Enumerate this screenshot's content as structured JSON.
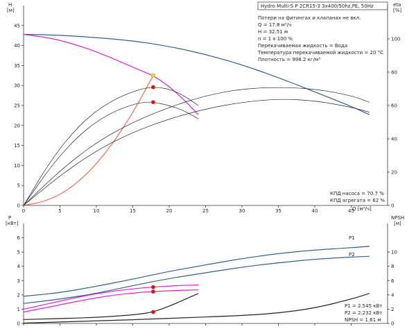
{
  "info": {
    "title": "Hydro Multi-S P 2CR15-3 3x400/50hz,PE, 50Hz",
    "lines": [
      "Потери на фитингах и клапанах не вкл.",
      "Q = 17.8 м³/ч",
      "H = 32.51 м",
      "n = 1 x 100 %",
      "Перекачиваемая жидкость = Вода",
      "Температура перекачиваемой жидкости = 20 °C",
      "Плотность = 998.2 кг/м³"
    ]
  },
  "bottom_notes": {
    "eff_lines": [
      "КПД насоса = 70.7 %",
      "КПД агрегата = 62 %"
    ],
    "power_lines": [
      "P1 = 2.545 кВт",
      "P2 = 2.232 кВт",
      "NPSH = 1.61 м"
    ]
  },
  "labels": {
    "h_axis": "H",
    "h_unit": "[м]",
    "eta_axis": "eta",
    "eta_unit": "[%]",
    "p_axis": "P",
    "p_unit": "[кВт]",
    "npsh_axis": "NPSH",
    "npsh_unit": "[м]",
    "q_axis": "Q [м³/ч]",
    "p1": "P1",
    "p2": "P2"
  },
  "colors": {
    "system_blue": "#2f5f8f",
    "pump_magenta": "#e020d0",
    "system_curve_red": "#f06a50",
    "efficiency_black": "#222222",
    "duty_point_red": "#e01010",
    "duty_point_yellow": "#f7d12e"
  },
  "chart_data": [
    {
      "type": "line",
      "name": "head-and-efficiency",
      "xlim": [
        0,
        50
      ],
      "x_ticks": [
        0,
        5,
        10,
        15,
        20,
        25,
        30,
        35,
        40,
        45
      ],
      "ylim_left": [
        0,
        50
      ],
      "y_ticks_left": [
        0,
        5,
        10,
        15,
        20,
        25,
        30,
        35,
        40,
        45
      ],
      "ylim_right": [
        0,
        120
      ],
      "y_ticks_right": [
        0,
        20,
        40,
        60,
        80,
        100
      ],
      "series": [
        {
          "role": "system-head",
          "axis": "left",
          "color": "blue",
          "x": [
            0,
            5,
            10,
            15,
            20,
            25,
            30,
            35,
            40,
            45,
            47.5
          ],
          "y": [
            42.8,
            42.6,
            42.0,
            41.2,
            39.8,
            37.8,
            35.2,
            32.0,
            28.4,
            24.8,
            22.7
          ]
        },
        {
          "role": "pump-head",
          "axis": "left",
          "color": "magenta",
          "x": [
            0,
            4,
            8,
            12,
            16,
            17.8,
            20,
            22,
            24
          ],
          "y": [
            42.8,
            41.8,
            39.8,
            37.0,
            33.8,
            32.5,
            29.8,
            26.5,
            22.7
          ]
        },
        {
          "role": "system-curve",
          "axis": "left",
          "color": "red",
          "x": [
            0,
            3,
            6,
            9,
            12,
            15,
            17.8
          ],
          "y": [
            0,
            1.0,
            3.7,
            8.3,
            14.8,
            23.1,
            32.5
          ]
        },
        {
          "role": "efficiency-1",
          "axis": "right",
          "x": [
            0,
            4,
            8,
            12,
            16,
            18,
            20,
            22,
            24
          ],
          "y": [
            0,
            25,
            44,
            56,
            62,
            62,
            60,
            57,
            52
          ]
        },
        {
          "role": "efficiency-2",
          "axis": "right",
          "x": [
            0,
            4,
            8,
            12,
            16,
            18,
            20,
            22,
            24
          ],
          "y": [
            0,
            29,
            50,
            63,
            70,
            71,
            70,
            66,
            60
          ]
        },
        {
          "role": "efficiency-3",
          "axis": "right",
          "x": [
            0,
            5,
            10,
            15,
            20,
            25,
            30,
            35,
            40,
            45,
            47.5
          ],
          "y": [
            0,
            18,
            33,
            44,
            52,
            58,
            62,
            64,
            63,
            59,
            56
          ]
        },
        {
          "role": "efficiency-4",
          "axis": "right",
          "x": [
            0,
            5,
            10,
            15,
            20,
            25,
            30,
            35,
            40,
            45,
            47.5
          ],
          "y": [
            0,
            21,
            38,
            50,
            59,
            66,
            70,
            71,
            70,
            66,
            62
          ]
        }
      ],
      "points": [
        {
          "x": 17.8,
          "y": 32.5,
          "axis": "left",
          "color": "yellow"
        },
        {
          "x": 17.8,
          "y": 71,
          "axis": "right",
          "color": "red"
        },
        {
          "x": 17.8,
          "y": 62,
          "axis": "right",
          "color": "red"
        }
      ]
    },
    {
      "type": "line",
      "name": "power-and-npsh",
      "xlim": [
        0,
        50
      ],
      "ylim_left": [
        0,
        7
      ],
      "y_ticks_left": [
        0,
        1,
        2,
        3,
        4,
        5,
        6
      ],
      "ylim_right": [
        0,
        14
      ],
      "y_ticks_right": [
        0,
        2,
        4,
        6,
        8,
        10
      ],
      "series": [
        {
          "role": "P1",
          "axis": "left",
          "color": "blue",
          "x": [
            0,
            5,
            10,
            15,
            20,
            25,
            30,
            35,
            40,
            45,
            47.5
          ],
          "y": [
            1.9,
            2.15,
            2.6,
            3.1,
            3.65,
            4.1,
            4.55,
            4.9,
            5.15,
            5.3,
            5.4
          ]
        },
        {
          "role": "P2",
          "axis": "left",
          "color": "blue",
          "x": [
            0,
            5,
            10,
            15,
            20,
            25,
            30,
            35,
            40,
            45,
            47.5
          ],
          "y": [
            1.4,
            1.7,
            2.1,
            2.65,
            3.15,
            3.55,
            3.95,
            4.25,
            4.5,
            4.65,
            4.7
          ]
        },
        {
          "role": "pump-P1",
          "axis": "left",
          "color": "magenta",
          "x": [
            0,
            4,
            8,
            12,
            16,
            17.8,
            20,
            22,
            24
          ],
          "y": [
            1.0,
            1.45,
            1.9,
            2.25,
            2.48,
            2.55,
            2.62,
            2.67,
            2.7
          ]
        },
        {
          "role": "pump-P2",
          "axis": "left",
          "color": "magenta",
          "x": [
            0,
            4,
            8,
            12,
            16,
            17.8,
            20,
            22,
            24
          ],
          "y": [
            0.8,
            1.2,
            1.62,
            1.97,
            2.18,
            2.23,
            2.29,
            2.33,
            2.35
          ]
        },
        {
          "role": "npsh-pump",
          "axis": "right",
          "color": "black",
          "x": [
            0,
            4,
            8,
            12,
            16,
            17.8,
            20,
            22,
            24
          ],
          "y": [
            0.55,
            0.65,
            0.78,
            0.95,
            1.3,
            1.61,
            2.4,
            3.3,
            4.2
          ]
        },
        {
          "role": "npsh-system",
          "axis": "right",
          "color": "black",
          "x": [
            0,
            10,
            20,
            30,
            35,
            40,
            45,
            47.5
          ],
          "y": [
            0.05,
            0.35,
            0.7,
            1.1,
            1.45,
            2.15,
            3.4,
            4.2
          ]
        }
      ],
      "points": [
        {
          "x": 17.8,
          "y": 2.545,
          "axis": "left",
          "color": "red"
        },
        {
          "x": 17.8,
          "y": 2.232,
          "axis": "left",
          "color": "red"
        },
        {
          "x": 17.8,
          "y": 1.61,
          "axis": "right",
          "color": "red"
        }
      ]
    }
  ]
}
